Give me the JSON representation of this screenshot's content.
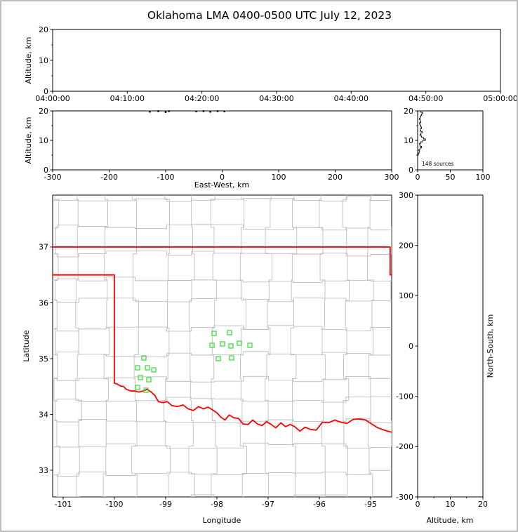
{
  "title": "Oklahoma LMA 0400-0500 UTC July 12, 2023",
  "colors": {
    "axis": "#000000",
    "county_lines": "#bdbdbd",
    "state_boundary": "#ff0000",
    "station_marker": "#3fdd3f",
    "source_point": "#000000"
  },
  "chart_data": [
    {
      "id": "time-altitude-panel",
      "type": "scatter",
      "xlabel": "",
      "ylabel": "Altitude, km",
      "x_tick_labels": [
        "04:00:00",
        "04:10:00",
        "04:20:00",
        "04:30:00",
        "04:40:00",
        "04:50:00",
        "05:00:00"
      ],
      "x_tick_seconds": [
        0,
        600,
        1200,
        1800,
        2400,
        3000,
        3600
      ],
      "xlim_seconds": [
        0,
        3600
      ],
      "y_ticks": [
        0,
        10,
        20
      ],
      "y_minor_ticks": [
        5,
        15
      ],
      "ylim": [
        0,
        20
      ],
      "points": []
    },
    {
      "id": "east-west-altitude-panel",
      "type": "scatter",
      "xlabel": "East-West, km",
      "ylabel": "Altitude, km",
      "x_ticks": [
        -300,
        -200,
        -100,
        0,
        100,
        200,
        300
      ],
      "xlim": [
        -300,
        300
      ],
      "y_ticks": [
        0,
        10,
        20
      ],
      "y_minor_ticks": [
        5,
        15
      ],
      "ylim": [
        0,
        20
      ],
      "points": [
        [
          -128,
          19.7
        ],
        [
          -113,
          19.9
        ],
        [
          -100,
          19.6
        ],
        [
          -94,
          19.9
        ],
        [
          -46,
          19.8
        ],
        [
          -33,
          19.9
        ],
        [
          -21,
          19.7
        ],
        [
          -8,
          19.9
        ],
        [
          4,
          19.8
        ]
      ]
    },
    {
      "id": "altitude-histogram-panel",
      "type": "line",
      "annotation": "148 sources",
      "total_sources": 148,
      "x_ticks": [
        0,
        50,
        100
      ],
      "xlim": [
        0,
        100
      ],
      "y_ticks": [
        0,
        10,
        20
      ],
      "y_minor_ticks": [
        5,
        15
      ],
      "ylim": [
        0,
        20
      ],
      "alt_bin_start_km": 5.0,
      "alt_bin_size_km": 0.5,
      "counts_per_bin": [
        1,
        2,
        3,
        2,
        4,
        6,
        4,
        3,
        5,
        8,
        12,
        9,
        6,
        4,
        5,
        7,
        5,
        4,
        6,
        5,
        4,
        3,
        5,
        4,
        3,
        4,
        5,
        6,
        8,
        5
      ]
    },
    {
      "id": "map-panel",
      "type": "scatter",
      "xlabel": "Longitude",
      "ylabel": "Latitude",
      "x_ticks": [
        -101,
        -100,
        -99,
        -98,
        -97,
        -96,
        -95
      ],
      "xlim": [
        -101.205,
        -94.589
      ],
      "y_ticks": [
        33,
        34,
        35,
        36,
        37
      ],
      "ylim": [
        32.522,
        37.93
      ],
      "stations": [
        [
          -99.424,
          35.012
        ],
        [
          -99.547,
          34.836
        ],
        [
          -99.355,
          34.836
        ],
        [
          -99.232,
          34.798
        ],
        [
          -99.492,
          34.66
        ],
        [
          -99.328,
          34.622
        ],
        [
          -99.547,
          34.484
        ],
        [
          -99.383,
          34.433
        ],
        [
          -98.054,
          35.452
        ],
        [
          -97.753,
          35.465
        ],
        [
          -98.095,
          35.239
        ],
        [
          -97.89,
          35.264
        ],
        [
          -97.726,
          35.226
        ],
        [
          -97.561,
          35.276
        ],
        [
          -97.356,
          35.239
        ],
        [
          -97.972,
          35.0
        ],
        [
          -97.712,
          35.012
        ]
      ],
      "state_boundary_paths": [
        [
          [
            -101.205,
            37
          ],
          [
            -94.618,
            37
          ],
          [
            -94.618,
            36.5
          ],
          [
            -94.589,
            36.5
          ]
        ],
        [
          [
            -101.205,
            36.5
          ],
          [
            -100.0,
            36.5
          ],
          [
            -100.0,
            34.56
          ],
          [
            -99.95,
            34.545
          ],
          [
            -99.88,
            34.51
          ],
          [
            -99.82,
            34.5
          ],
          [
            -99.77,
            34.45
          ],
          [
            -99.68,
            34.42
          ],
          [
            -99.6,
            34.42
          ],
          [
            -99.52,
            34.4
          ],
          [
            -99.44,
            34.42
          ],
          [
            -99.36,
            34.45
          ],
          [
            -99.28,
            34.4
          ],
          [
            -99.21,
            34.34
          ],
          [
            -99.14,
            34.23
          ],
          [
            -99.05,
            34.21
          ],
          [
            -98.97,
            34.23
          ],
          [
            -98.88,
            34.16
          ],
          [
            -98.77,
            34.14
          ],
          [
            -98.66,
            34.17
          ],
          [
            -98.56,
            34.1
          ],
          [
            -98.46,
            34.07
          ],
          [
            -98.36,
            34.14
          ],
          [
            -98.26,
            34.1
          ],
          [
            -98.17,
            34.13
          ],
          [
            -98.08,
            34.08
          ],
          [
            -98.0,
            34.03
          ],
          [
            -97.92,
            33.95
          ],
          [
            -97.84,
            33.9
          ],
          [
            -97.76,
            33.99
          ],
          [
            -97.67,
            33.94
          ],
          [
            -97.58,
            33.93
          ],
          [
            -97.49,
            33.83
          ],
          [
            -97.39,
            33.82
          ],
          [
            -97.3,
            33.9
          ],
          [
            -97.21,
            33.83
          ],
          [
            -97.12,
            33.8
          ],
          [
            -97.03,
            33.87
          ],
          [
            -96.94,
            33.82
          ],
          [
            -96.85,
            33.76
          ],
          [
            -96.75,
            33.85
          ],
          [
            -96.66,
            33.78
          ],
          [
            -96.57,
            33.82
          ],
          [
            -96.48,
            33.78
          ],
          [
            -96.38,
            33.7
          ],
          [
            -96.28,
            33.77
          ],
          [
            -96.17,
            33.73
          ],
          [
            -96.06,
            33.72
          ],
          [
            -95.94,
            33.86
          ],
          [
            -95.82,
            33.85
          ],
          [
            -95.7,
            33.9
          ],
          [
            -95.58,
            33.86
          ],
          [
            -95.46,
            33.84
          ],
          [
            -95.34,
            33.91
          ],
          [
            -95.22,
            33.92
          ],
          [
            -95.1,
            33.9
          ],
          [
            -94.98,
            33.83
          ],
          [
            -94.86,
            33.76
          ],
          [
            -94.74,
            33.72
          ],
          [
            -94.59,
            33.68
          ]
        ]
      ]
    },
    {
      "id": "north-south-altitude-panel",
      "type": "scatter",
      "xlabel": "Altitude, km",
      "ylabel": "North-South, km",
      "x_ticks": [
        0,
        10,
        20
      ],
      "x_minor_ticks": [
        5,
        15
      ],
      "xlim": [
        0,
        20
      ],
      "y_ticks": [
        300,
        200,
        100,
        0,
        -100,
        -200,
        -300
      ],
      "ylim": [
        -300,
        300
      ],
      "points": []
    }
  ]
}
